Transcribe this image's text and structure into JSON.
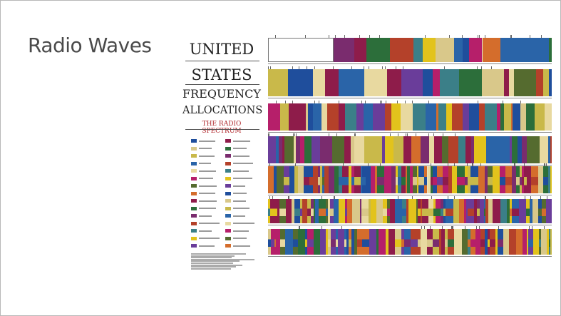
{
  "slide": {
    "title": "Radio Waves"
  },
  "poster": {
    "line1": "UNITED",
    "line2": "STATES",
    "line3": "FREQUENCY",
    "line4": "ALLOCATIONS",
    "line5": "THE RADIO SPECTRUM"
  },
  "colors": {
    "slide_border": "#b8b8b8",
    "title_text": "#4a4a4a",
    "subtitle_red": "#b0262a",
    "band_palette": [
      "#1f4e9c",
      "#8e1c4a",
      "#d9c88a",
      "#2c6e3a",
      "#c9b94a",
      "#7a2c6e",
      "#2a64a8",
      "#b4412a",
      "#e8d9a0",
      "#3b7f88",
      "#b61f6a",
      "#e2c31c",
      "#556b2f",
      "#6a3d9a",
      "#d46d2c"
    ]
  }
}
